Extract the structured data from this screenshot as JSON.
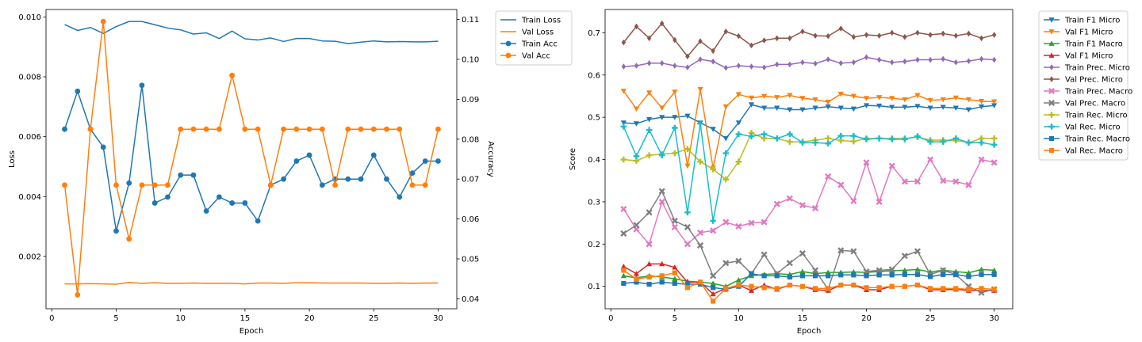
{
  "chart_data": [
    {
      "type": "line",
      "title": "",
      "xlabel": "Epoch",
      "ylabel": "Loss",
      "ylabel_right": "Accuracy",
      "x": [
        1,
        2,
        3,
        4,
        5,
        6,
        7,
        8,
        9,
        10,
        11,
        12,
        13,
        14,
        15,
        16,
        17,
        18,
        19,
        20,
        21,
        22,
        23,
        24,
        25,
        26,
        27,
        28,
        29,
        30
      ],
      "xlim": [
        -0.45,
        31.45
      ],
      "ylim": [
        0.00025,
        0.01025
      ],
      "ylim_right": [
        0.0375,
        0.1125
      ],
      "xticks": [
        0,
        5,
        10,
        15,
        20,
        25,
        30
      ],
      "yticks": [
        0.002,
        0.004,
        0.006,
        0.008,
        0.01
      ],
      "ytick_labels": [
        "0.002",
        "0.004",
        "0.006",
        "0.008",
        "0.010"
      ],
      "yticks_right": [
        0.04,
        0.05,
        0.06,
        0.07,
        0.08,
        0.09,
        0.1,
        0.11
      ],
      "ytick_labels_right": [
        "0.04",
        "0.05",
        "0.06",
        "0.07",
        "0.08",
        "0.09",
        "0.10",
        "0.11"
      ],
      "grid": false,
      "legend_position": "outside-top-right",
      "series": [
        {
          "name": "Train Loss",
          "axis": "left",
          "color": "#1f77b4",
          "marker": "none",
          "values": [
            0.00975,
            0.00955,
            0.00965,
            0.00945,
            0.00968,
            0.00985,
            0.00985,
            0.00974,
            0.00963,
            0.00957,
            0.00943,
            0.00947,
            0.00928,
            0.00953,
            0.00927,
            0.00923,
            0.0093,
            0.00918,
            0.00928,
            0.00928,
            0.0092,
            0.00919,
            0.00911,
            0.00916,
            0.0092,
            0.00917,
            0.00918,
            0.00917,
            0.00917,
            0.00919
          ]
        },
        {
          "name": "Val Loss",
          "axis": "left",
          "color": "#ff7f0e",
          "marker": "none",
          "values": [
            0.00108,
            0.00108,
            0.00109,
            0.00108,
            0.00107,
            0.00113,
            0.0011,
            0.00112,
            0.0011,
            0.0011,
            0.00111,
            0.0011,
            0.0011,
            0.0011,
            0.00108,
            0.00111,
            0.00111,
            0.0011,
            0.00112,
            0.00112,
            0.00111,
            0.00111,
            0.00111,
            0.00111,
            0.0011,
            0.0011,
            0.00111,
            0.0011,
            0.00111,
            0.00111
          ]
        },
        {
          "name": "Train Acc",
          "axis": "right",
          "color": "#1f77b4",
          "marker": "circle",
          "values": [
            0.0825,
            0.092,
            0.0825,
            0.078,
            0.057,
            0.069,
            0.0935,
            0.064,
            0.0655,
            0.071,
            0.071,
            0.062,
            0.0655,
            0.064,
            0.064,
            0.0595,
            0.0685,
            0.07,
            0.0745,
            0.076,
            0.0685,
            0.07,
            0.07,
            0.07,
            0.076,
            0.07,
            0.0655,
            0.0715,
            0.0745,
            0.0745
          ]
        },
        {
          "name": "Val Acc",
          "axis": "right",
          "color": "#ff7f0e",
          "marker": "circle",
          "values": [
            0.0685,
            0.041,
            0.0825,
            0.1095,
            0.0685,
            0.055,
            0.0685,
            0.0685,
            0.0685,
            0.0825,
            0.0825,
            0.0825,
            0.0825,
            0.096,
            0.0825,
            0.0825,
            0.0685,
            0.0825,
            0.0825,
            0.0825,
            0.0825,
            0.0685,
            0.0825,
            0.0825,
            0.0825,
            0.0825,
            0.0825,
            0.0685,
            0.0685,
            0.0825
          ]
        }
      ]
    },
    {
      "type": "line",
      "title": "",
      "xlabel": "Epoch",
      "ylabel": "Score",
      "x": [
        1,
        2,
        3,
        4,
        5,
        6,
        7,
        8,
        9,
        10,
        11,
        12,
        13,
        14,
        15,
        16,
        17,
        18,
        19,
        20,
        21,
        22,
        23,
        24,
        25,
        26,
        27,
        28,
        29,
        30
      ],
      "xlim": [
        -0.45,
        31.45
      ],
      "ylim": [
        0.047,
        0.755
      ],
      "xticks": [
        0,
        5,
        10,
        15,
        20,
        25,
        30
      ],
      "yticks": [
        0.1,
        0.2,
        0.3,
        0.4,
        0.5,
        0.6,
        0.7
      ],
      "ytick_labels": [
        "0.1",
        "0.2",
        "0.3",
        "0.4",
        "0.5",
        "0.6",
        "0.7"
      ],
      "grid": false,
      "legend_position": "outside-top-right",
      "series": [
        {
          "name": "Train F1 Micro",
          "color": "#1f77b4",
          "marker": "triangle-down",
          "values": [
            0.487,
            0.485,
            0.495,
            0.5,
            0.5,
            0.503,
            0.487,
            0.472,
            0.45,
            0.487,
            0.53,
            0.522,
            0.522,
            0.518,
            0.518,
            0.522,
            0.525,
            0.522,
            0.52,
            0.528,
            0.527,
            0.524,
            0.524,
            0.526,
            0.522,
            0.524,
            0.522,
            0.518,
            0.525,
            0.528
          ]
        },
        {
          "name": "Val F1 Micro",
          "color": "#ff7f0e",
          "marker": "triangle-down",
          "values": [
            0.562,
            0.52,
            0.558,
            0.522,
            0.56,
            0.385,
            0.566,
            0.38,
            0.525,
            0.554,
            0.546,
            0.55,
            0.547,
            0.552,
            0.545,
            0.542,
            0.536,
            0.555,
            0.55,
            0.545,
            0.547,
            0.545,
            0.542,
            0.552,
            0.54,
            0.542,
            0.546,
            0.542,
            0.538,
            0.537
          ]
        },
        {
          "name": "Train F1 Macro",
          "color": "#2ca02c",
          "marker": "triangle-up",
          "values": [
            0.125,
            0.12,
            0.125,
            0.122,
            0.118,
            0.112,
            0.11,
            0.107,
            0.1,
            0.115,
            0.125,
            0.128,
            0.13,
            0.128,
            0.135,
            0.13,
            0.133,
            0.133,
            0.134,
            0.133,
            0.135,
            0.137,
            0.138,
            0.14,
            0.134,
            0.138,
            0.135,
            0.132,
            0.14,
            0.138
          ]
        },
        {
          "name": "Val F1 Micro",
          "color": "#d62728",
          "marker": "triangle-up",
          "values": [
            0.147,
            0.13,
            0.153,
            0.153,
            0.145,
            0.11,
            0.11,
            0.082,
            0.095,
            0.103,
            0.09,
            0.103,
            0.093,
            0.103,
            0.1,
            0.092,
            0.09,
            0.103,
            0.103,
            0.092,
            0.092,
            0.1,
            0.1,
            0.103,
            0.092,
            0.092,
            0.093,
            0.09,
            0.09,
            0.09
          ]
        },
        {
          "name": "Train Prec. Micro",
          "color": "#9467bd",
          "marker": "diamond",
          "values": [
            0.62,
            0.622,
            0.628,
            0.628,
            0.622,
            0.618,
            0.637,
            0.632,
            0.617,
            0.622,
            0.62,
            0.618,
            0.625,
            0.625,
            0.63,
            0.627,
            0.637,
            0.628,
            0.63,
            0.642,
            0.636,
            0.63,
            0.632,
            0.636,
            0.636,
            0.638,
            0.63,
            0.633,
            0.638,
            0.636
          ]
        },
        {
          "name": "Val Prec. Micro",
          "color": "#8c564b",
          "marker": "diamond",
          "values": [
            0.677,
            0.715,
            0.687,
            0.722,
            0.683,
            0.644,
            0.68,
            0.657,
            0.703,
            0.692,
            0.67,
            0.682,
            0.687,
            0.687,
            0.703,
            0.693,
            0.692,
            0.71,
            0.69,
            0.695,
            0.693,
            0.7,
            0.69,
            0.7,
            0.695,
            0.698,
            0.693,
            0.698,
            0.687,
            0.695
          ]
        },
        {
          "name": "Train Prec. Macro",
          "color": "#e377c2",
          "marker": "x",
          "values": [
            0.283,
            0.235,
            0.2,
            0.3,
            0.24,
            0.2,
            0.227,
            0.232,
            0.252,
            0.242,
            0.25,
            0.252,
            0.295,
            0.308,
            0.292,
            0.285,
            0.36,
            0.34,
            0.302,
            0.393,
            0.3,
            0.385,
            0.348,
            0.348,
            0.4,
            0.35,
            0.348,
            0.34,
            0.4,
            0.393
          ]
        },
        {
          "name": "Val Prec. Macro",
          "color": "#7f7f7f",
          "marker": "x",
          "values": [
            0.225,
            0.245,
            0.275,
            0.325,
            0.255,
            0.24,
            0.197,
            0.125,
            0.155,
            0.16,
            0.13,
            0.175,
            0.13,
            0.155,
            0.178,
            0.138,
            0.093,
            0.185,
            0.183,
            0.135,
            0.138,
            0.14,
            0.172,
            0.183,
            0.128,
            0.138,
            0.128,
            0.1,
            0.085,
            0.093
          ]
        },
        {
          "name": "Train Rec. Micro",
          "color": "#bcbd22",
          "marker": "plus",
          "values": [
            0.4,
            0.397,
            0.41,
            0.413,
            0.415,
            0.425,
            0.395,
            0.377,
            0.353,
            0.395,
            0.463,
            0.45,
            0.45,
            0.442,
            0.442,
            0.446,
            0.45,
            0.445,
            0.443,
            0.45,
            0.45,
            0.45,
            0.45,
            0.453,
            0.446,
            0.446,
            0.445,
            0.44,
            0.45,
            0.45
          ]
        },
        {
          "name": "Val Rec. Micro",
          "color": "#17becf",
          "marker": "plus",
          "values": [
            0.478,
            0.408,
            0.47,
            0.41,
            0.475,
            0.275,
            0.485,
            0.255,
            0.415,
            0.46,
            0.455,
            0.46,
            0.45,
            0.46,
            0.44,
            0.44,
            0.438,
            0.456,
            0.456,
            0.448,
            0.45,
            0.448,
            0.448,
            0.455,
            0.442,
            0.442,
            0.45,
            0.44,
            0.44,
            0.435
          ]
        },
        {
          "name": "Train Rec. Macro",
          "color": "#1f77b4",
          "marker": "square",
          "values": [
            0.107,
            0.11,
            0.105,
            0.11,
            0.107,
            0.105,
            0.105,
            0.097,
            0.093,
            0.1,
            0.13,
            0.125,
            0.125,
            0.122,
            0.125,
            0.125,
            0.125,
            0.127,
            0.127,
            0.125,
            0.127,
            0.127,
            0.128,
            0.128,
            0.123,
            0.128,
            0.128,
            0.123,
            0.128,
            0.128
          ]
        },
        {
          "name": "Val Rec. Macro",
          "color": "#ff7f0e",
          "marker": "square",
          "values": [
            0.138,
            0.117,
            0.122,
            0.125,
            0.132,
            0.097,
            0.11,
            0.065,
            0.095,
            0.103,
            0.1,
            0.097,
            0.095,
            0.103,
            0.1,
            0.095,
            0.095,
            0.103,
            0.103,
            0.097,
            0.097,
            0.1,
            0.1,
            0.103,
            0.095,
            0.095,
            0.095,
            0.093,
            0.095,
            0.093
          ]
        }
      ]
    }
  ]
}
